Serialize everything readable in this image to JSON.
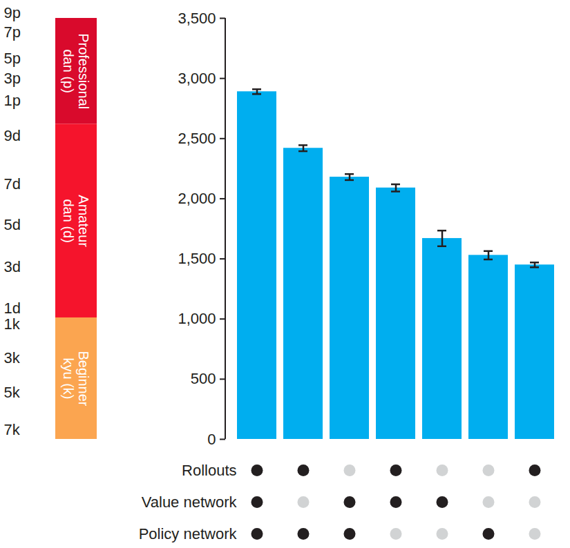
{
  "chart_data": {
    "type": "bar",
    "categories": [
      null,
      null,
      null,
      null,
      null,
      null,
      null
    ],
    "values": [
      2890,
      2420,
      2180,
      2090,
      1670,
      1530,
      1450
    ],
    "errors": [
      20,
      25,
      25,
      30,
      65,
      35,
      20
    ],
    "color": "#00aeef",
    "ylim": [
      0,
      3500
    ],
    "yticks": [
      0,
      500,
      {
        "value": 1000,
        "label": "1,000"
      },
      {
        "value": 1500,
        "label": "1,500"
      },
      {
        "value": 2000,
        "label": "2,000"
      },
      {
        "value": 2500,
        "label": "2,500"
      },
      {
        "value": 3000,
        "label": "3,000"
      },
      {
        "value": 3500,
        "label": "3,500"
      }
    ],
    "components": [
      {
        "name": "Rollouts",
        "values": [
          true,
          true,
          false,
          true,
          false,
          false,
          true
        ]
      },
      {
        "name": "Value network",
        "values": [
          true,
          false,
          true,
          true,
          true,
          false,
          false
        ]
      },
      {
        "name": "Policy network",
        "values": [
          true,
          true,
          true,
          false,
          false,
          true,
          false
        ]
      }
    ],
    "rank_scale": {
      "bands": [
        {
          "label": [
            "Professional",
            "dan (p)"
          ],
          "from": 2620,
          "to": 3500,
          "color": "#d90a2c"
        },
        {
          "label": [
            "Amateur",
            "dan (d)"
          ],
          "from": 1010,
          "to": 2620,
          "color": "#f5142c"
        },
        {
          "label": [
            "Beginner",
            "kyu (k)"
          ],
          "from": 0,
          "to": 1010,
          "color": "#fba550"
        }
      ],
      "ticks": [
        {
          "label": "9p",
          "value": 3545
        },
        {
          "label": "7p",
          "value": 3380
        },
        {
          "label": "5p",
          "value": 3167
        },
        {
          "label": "3p",
          "value": 3000
        },
        {
          "label": "1p",
          "value": 2817
        },
        {
          "label": "9d",
          "value": 2524
        },
        {
          "label": "7d",
          "value": 2123
        },
        {
          "label": "5d",
          "value": 1779
        },
        {
          "label": "3d",
          "value": 1434
        },
        {
          "label": "1d",
          "value": 1090
        },
        {
          "label": "1k",
          "value": 958
        },
        {
          "label": "3k",
          "value": 677
        },
        {
          "label": "5k",
          "value": 390
        },
        {
          "label": "7k",
          "value": 75
        }
      ]
    }
  }
}
